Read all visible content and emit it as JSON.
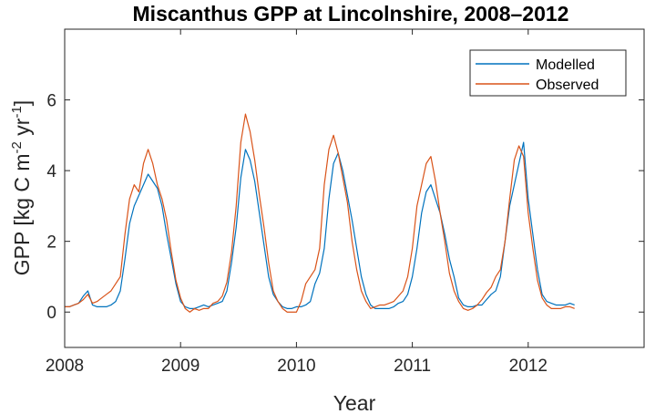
{
  "chart_data": {
    "type": "line",
    "title": "Miscanthus GPP at Lincolnshire, 2008–2012",
    "xlabel": "Year",
    "ylabel": "GPP [kg C m",
    "ylabel_unit": {
      "sup1": "-2",
      "mid": " yr",
      "sup2": "-1",
      "end": "]"
    },
    "xlim": [
      2008,
      2013
    ],
    "ylim": [
      -1,
      8
    ],
    "x_ticks": [
      2008,
      2009,
      2010,
      2011,
      2012
    ],
    "x_tick_labels": [
      "2008",
      "2009",
      "2010",
      "2011",
      "2012"
    ],
    "y_ticks": [
      0,
      2,
      4,
      6
    ],
    "y_tick_labels": [
      "0",
      "2",
      "4",
      "6"
    ],
    "grid": false,
    "legend_position": "top-right",
    "colors": {
      "Modelled": "#0072BD",
      "Observed": "#D95319"
    },
    "x_step": 0.04,
    "series": [
      {
        "name": "Modelled",
        "x_start": 2008.0,
        "values": [
          0.15,
          0.15,
          0.2,
          0.25,
          0.45,
          0.6,
          0.2,
          0.15,
          0.15,
          0.15,
          0.2,
          0.3,
          0.6,
          1.5,
          2.5,
          3.0,
          3.3,
          3.6,
          3.9,
          3.7,
          3.5,
          3.0,
          2.2,
          1.5,
          0.8,
          0.3,
          0.15,
          0.1,
          0.1,
          0.15,
          0.2,
          0.15,
          0.2,
          0.25,
          0.3,
          0.6,
          1.4,
          2.4,
          3.8,
          4.6,
          4.3,
          3.7,
          2.8,
          1.9,
          1.0,
          0.5,
          0.3,
          0.15,
          0.1,
          0.1,
          0.15,
          0.15,
          0.2,
          0.3,
          0.8,
          1.1,
          1.8,
          3.2,
          4.2,
          4.5,
          4.0,
          3.3,
          2.6,
          1.8,
          1.0,
          0.5,
          0.2,
          0.1,
          0.1,
          0.1,
          0.1,
          0.15,
          0.25,
          0.3,
          0.5,
          1.0,
          1.8,
          2.8,
          3.4,
          3.6,
          3.2,
          2.8,
          2.2,
          1.5,
          1.0,
          0.4,
          0.2,
          0.15,
          0.15,
          0.2,
          0.2,
          0.35,
          0.5,
          0.6,
          1.0,
          2.0,
          3.0,
          3.6,
          4.2,
          4.8,
          3.2,
          2.2,
          1.2,
          0.5,
          0.3,
          0.25,
          0.2,
          0.2,
          0.2,
          0.25,
          0.2
        ]
      },
      {
        "name": "Observed",
        "x_start": 2008.0,
        "values": [
          0.15,
          0.15,
          0.2,
          0.25,
          0.35,
          0.5,
          0.25,
          0.3,
          0.4,
          0.5,
          0.6,
          0.8,
          1.0,
          2.2,
          3.2,
          3.6,
          3.4,
          4.2,
          4.6,
          4.2,
          3.6,
          3.2,
          2.6,
          1.7,
          0.9,
          0.4,
          0.1,
          0.0,
          0.1,
          0.05,
          0.1,
          0.1,
          0.25,
          0.3,
          0.45,
          0.85,
          1.7,
          3.0,
          4.8,
          5.6,
          5.1,
          4.3,
          3.3,
          2.4,
          1.4,
          0.6,
          0.3,
          0.1,
          0.0,
          0.0,
          0.0,
          0.3,
          0.8,
          1.0,
          1.2,
          1.8,
          3.6,
          4.6,
          5.0,
          4.5,
          3.8,
          3.1,
          2.0,
          1.2,
          0.6,
          0.3,
          0.1,
          0.15,
          0.2,
          0.2,
          0.25,
          0.3,
          0.45,
          0.6,
          1.0,
          1.8,
          3.0,
          3.6,
          4.2,
          4.4,
          3.7,
          2.8,
          2.0,
          1.1,
          0.6,
          0.3,
          0.1,
          0.05,
          0.1,
          0.2,
          0.35,
          0.55,
          0.7,
          1.0,
          1.2,
          2.0,
          3.2,
          4.3,
          4.7,
          4.4,
          2.8,
          1.8,
          0.9,
          0.4,
          0.2,
          0.1,
          0.1,
          0.1,
          0.15,
          0.15,
          0.1
        ]
      }
    ]
  }
}
